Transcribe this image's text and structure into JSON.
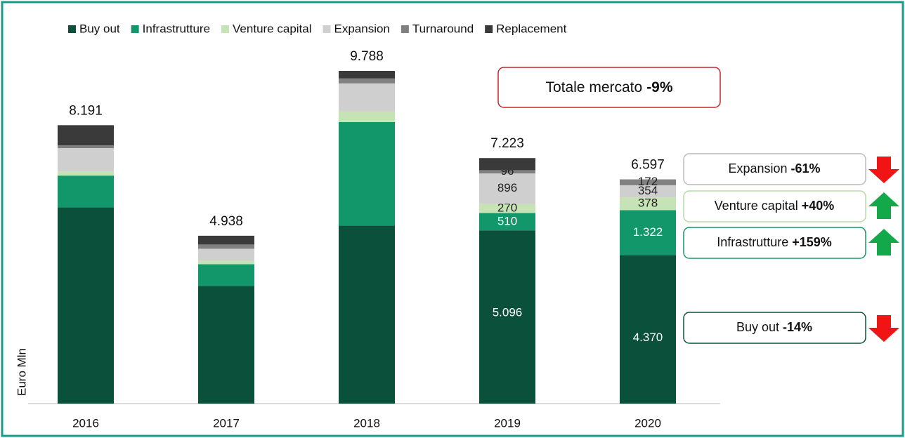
{
  "chart_data": {
    "type": "stacked_bar",
    "y_label": "Euro Mln",
    "categories": [
      "2016",
      "2017",
      "2018",
      "2019",
      "2020"
    ],
    "series": [
      {
        "name": "Buy out",
        "color": "#0b503a",
        "values": [
          5776,
          3458,
          5238,
          5096,
          4370
        ],
        "value_labels": [
          null,
          null,
          null,
          "5.096",
          "4.370"
        ]
      },
      {
        "name": "Infrastrutture",
        "color": "#12976b",
        "values": [
          932,
          642,
          3043,
          510,
          1322
        ],
        "value_labels": [
          null,
          null,
          null,
          "510",
          "1.322"
        ]
      },
      {
        "name": "Venture capital",
        "color": "#c5e3b5",
        "values": [
          124,
          104,
          311,
          270,
          378
        ],
        "value_labels": [
          null,
          null,
          null,
          "270",
          "378"
        ]
      },
      {
        "name": "Expansion",
        "color": "#d0cfd0",
        "values": [
          683,
          352,
          828,
          896,
          354
        ],
        "value_labels": [
          null,
          null,
          null,
          "896",
          "354"
        ]
      },
      {
        "name": "Turnaround",
        "color": "#808080",
        "values": [
          83,
          124,
          145,
          96,
          172
        ],
        "value_labels": [
          null,
          null,
          null,
          "96",
          "172"
        ]
      },
      {
        "name": "Replacement",
        "color": "#3a3a3a",
        "values": [
          593,
          258,
          223,
          355,
          1
        ],
        "value_labels": [
          null,
          null,
          null,
          null,
          null
        ]
      }
    ],
    "totals": [
      {
        "value": 8191,
        "label": "8.191"
      },
      {
        "value": 4938,
        "label": "4.938"
      },
      {
        "value": 9788,
        "label": "9.788"
      },
      {
        "value": 7223,
        "label": "7.223"
      },
      {
        "value": 6597,
        "label": "6.597"
      }
    ],
    "market_callout": {
      "label": "Totale mercato",
      "change": "-9%"
    },
    "callouts": [
      {
        "label": "Expansion",
        "change": "-61%",
        "direction": "down"
      },
      {
        "label": "Venture capital",
        "change": "+40%",
        "direction": "up"
      },
      {
        "label": "Infrastrutture",
        "change": "+159%",
        "direction": "up"
      },
      {
        "label": "Buy out",
        "change": "-14%",
        "direction": "down"
      }
    ]
  }
}
